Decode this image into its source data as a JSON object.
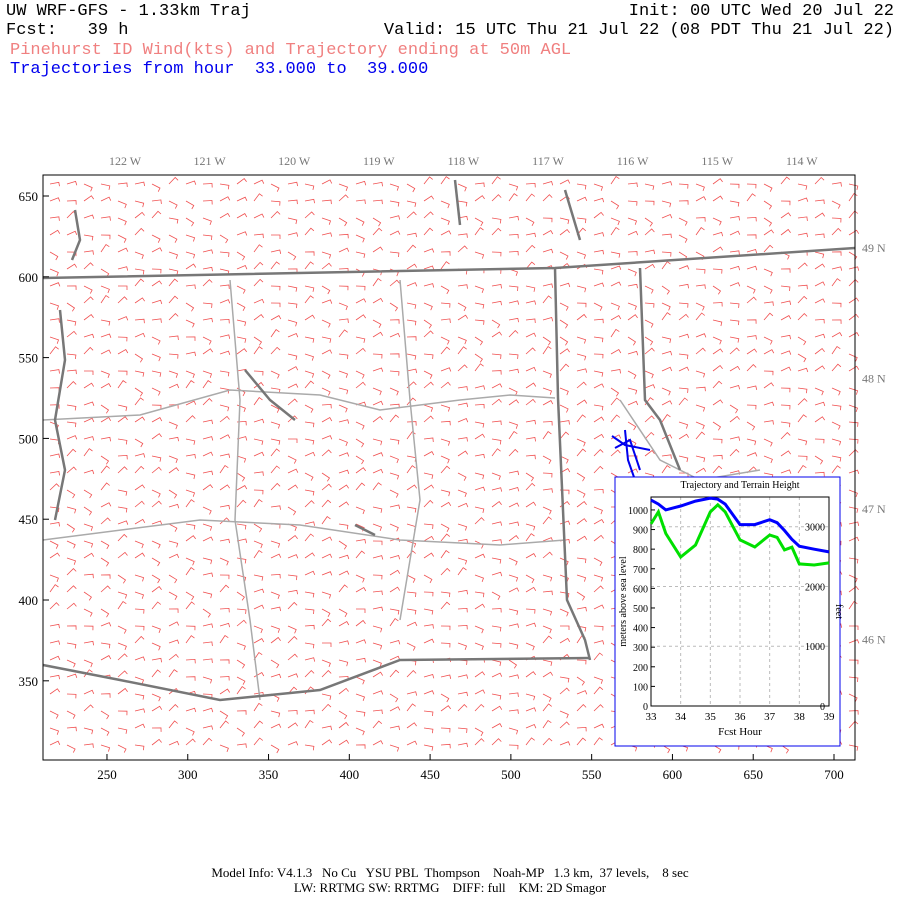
{
  "header": {
    "title": "UW WRF-GFS - 1.33km Traj",
    "init": "Init: 00 UTC Wed 20 Jul 22",
    "fcst": "Fcst:   39 h",
    "valid": "Valid: 15 UTC Thu 21 Jul 22 (08 PDT Thu 21 Jul 22)",
    "subtitle": "Pinehurst ID Wind(kts) and Trajectory ending at 50m AGL",
    "trajectories": "Trajectories from hour  33.000 to  39.000"
  },
  "map": {
    "xlim": [
      210.4,
      713
    ],
    "ylim": [
      301,
      663
    ],
    "xticks": [
      250,
      300,
      350,
      400,
      450,
      500,
      550,
      600,
      650,
      700
    ],
    "yticks": [
      350,
      400,
      450,
      500,
      550,
      600,
      650
    ],
    "lon_labels": [
      "122 W",
      "121 W",
      "120 W",
      "119 W",
      "118 W",
      "117 W",
      "116 W",
      "115 W",
      "114 W"
    ],
    "lat_labels": [
      "49 N",
      "48 N",
      "47 N",
      "46 N"
    ]
  },
  "inset": {
    "type": "line",
    "title": "Trajectory and Terrain Height",
    "xlabel": "Fcst Hour",
    "ylabel": "meters above sea level",
    "y2label": "feet",
    "xlim": [
      33,
      39
    ],
    "xticks": [
      33,
      34,
      35,
      36,
      37,
      38,
      39
    ],
    "ylim": [
      0,
      1066
    ],
    "yticks": [
      0,
      100,
      200,
      300,
      400,
      500,
      600,
      700,
      800,
      900,
      1000
    ],
    "y2lim": [
      0,
      3497
    ],
    "y2ticks": [
      0,
      1000,
      2000,
      3000
    ],
    "x": [
      33,
      33.25,
      33.5,
      34,
      34.5,
      35,
      35.25,
      35.5,
      36,
      36.5,
      37,
      37.25,
      37.5,
      37.75,
      38,
      38.5,
      39
    ],
    "series": [
      {
        "name": "trajectory",
        "color": "#0000ff",
        "values": [
          1050,
          1030,
          1000,
          1020,
          1045,
          1060,
          1055,
          1030,
          925,
          925,
          950,
          935,
          895,
          850,
          815,
          800,
          786
        ]
      },
      {
        "name": "terrain",
        "color": "#00e000",
        "values": [
          929,
          990,
          880,
          760,
          821,
          990,
          1026,
          990,
          847,
          811,
          872,
          860,
          796,
          810,
          725,
          719,
          730
        ]
      }
    ]
  },
  "footer": {
    "line1": "Model Info: V4.1.3   No Cu   YSU PBL  Thompson    Noah-MP   1.3 km,  37 levels,    8 sec",
    "line2": "LW: RRTMG SW: RRTMG    DIFF: full    KM: 2D Smagor"
  }
}
